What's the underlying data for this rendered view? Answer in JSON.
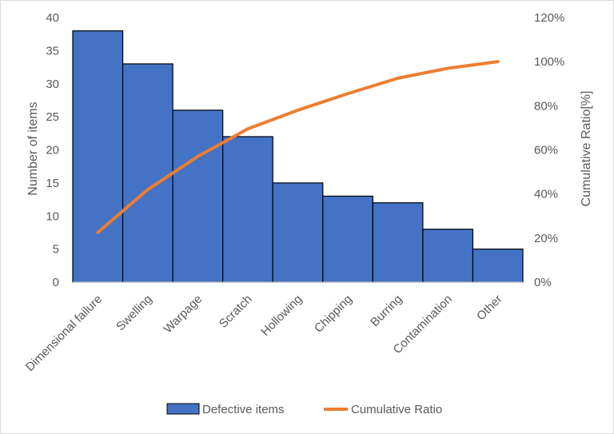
{
  "chart_data": {
    "type": "bar",
    "categories": [
      "Dimensional failure",
      "Swelling",
      "Warpage",
      "Scratch",
      "Hollowing",
      "Chipping",
      "Burring",
      "Contamination",
      "Other"
    ],
    "series": [
      {
        "name": "Defective items",
        "type": "bar",
        "axis": "left",
        "color": "#4472c4",
        "values": [
          38,
          33,
          26,
          22,
          15,
          13,
          12,
          8,
          5
        ]
      },
      {
        "name": "Cumulative Ratio",
        "type": "line",
        "axis": "right",
        "color": "#ed7d31",
        "values": [
          22.5,
          42,
          57,
          69.5,
          78,
          85.5,
          92.5,
          97,
          100
        ]
      }
    ],
    "ylabel": "Number of items",
    "ylim": [
      0,
      40
    ],
    "yticks": [
      "0",
      "5",
      "10",
      "15",
      "20",
      "25",
      "30",
      "35",
      "40"
    ],
    "y2label": "Cumulative Ratio[%]",
    "y2lim": [
      0,
      120
    ],
    "y2ticks": [
      "0%",
      "20%",
      "40%",
      "60%",
      "80%",
      "100%",
      "120%"
    ],
    "grid": false,
    "legend_position": "bottom"
  }
}
